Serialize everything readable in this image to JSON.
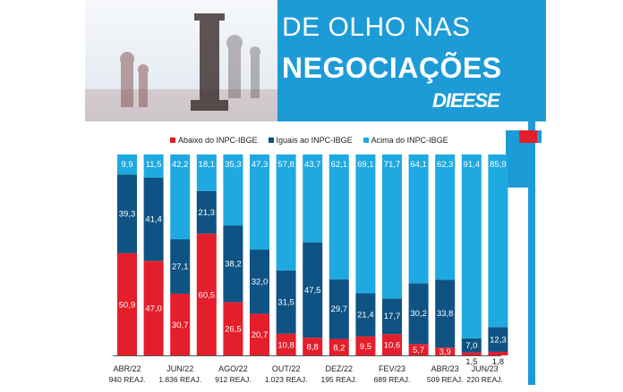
{
  "header": {
    "title_line1": "DE OLHO NAS",
    "title_line2": "NEGOCIAÇÕES",
    "brand": "DIEESE"
  },
  "colors": {
    "below": "#e41e2b",
    "equal": "#0e5383",
    "above": "#1fa9e1",
    "panel": "#1c9bd6"
  },
  "chart_data": {
    "type": "bar",
    "stacked": true,
    "percent": true,
    "series": [
      {
        "name": "Abaixo do INPC-IBGE",
        "labels": [
          "50,9",
          "47,0",
          "30,7",
          "60,5",
          "26,5",
          "20,7",
          "10,8",
          "8,8",
          "8,2",
          "9,5",
          "10,6",
          "5,7",
          "3,9",
          "1,5",
          "1,8"
        ],
        "values": [
          50.9,
          47.0,
          30.7,
          60.5,
          26.5,
          20.7,
          10.8,
          8.8,
          8.2,
          9.5,
          10.6,
          5.7,
          3.9,
          1.5,
          1.8
        ]
      },
      {
        "name": "Iguais ao INPC-IBGE",
        "labels": [
          "39,3",
          "41,4",
          "27,1",
          "21,3",
          "38,2",
          "32,0",
          "31,5",
          "47,5",
          "29,7",
          "21,4",
          "17,7",
          "30,2",
          "33,8",
          "7,0",
          "12,3"
        ],
        "values": [
          39.3,
          41.4,
          27.1,
          21.3,
          38.2,
          32.0,
          31.5,
          47.5,
          29.7,
          21.4,
          17.7,
          30.2,
          33.8,
          7.0,
          12.3
        ]
      },
      {
        "name": "Acima do INPC-IBGE",
        "labels": [
          "9,9",
          "11,5",
          "42,2",
          "18,1",
          "35,3",
          "47,3",
          "57,8",
          "43,7",
          "62,1",
          "69,1",
          "71,7",
          "64,1",
          "62,3",
          "91,4",
          "85,9"
        ],
        "values": [
          9.9,
          11.5,
          42.2,
          18.1,
          35.3,
          47.3,
          57.8,
          43.7,
          62.1,
          69.1,
          71.7,
          64.1,
          62.3,
          91.4,
          85.9
        ]
      }
    ],
    "x_labels": [
      {
        "month": "ABR/22",
        "reaj": "940 REAJ."
      },
      {
        "month": "JUN/22",
        "reaj": "1.836 REAJ."
      },
      {
        "month": "AGO/22",
        "reaj": "912 REAJ."
      },
      {
        "month": "OUT/22",
        "reaj": "1.023 REAJ."
      },
      {
        "month": "DEZ/22",
        "reaj": "195 REAJ."
      },
      {
        "month": "FEV/23",
        "reaj": "689 REAJ."
      },
      {
        "month": "ABR/23",
        "reaj": "509 REAJ."
      },
      {
        "month": "JUN/23",
        "reaj": "220 REAJ."
      }
    ],
    "ylim": [
      0,
      100
    ],
    "legend_position": "top"
  }
}
